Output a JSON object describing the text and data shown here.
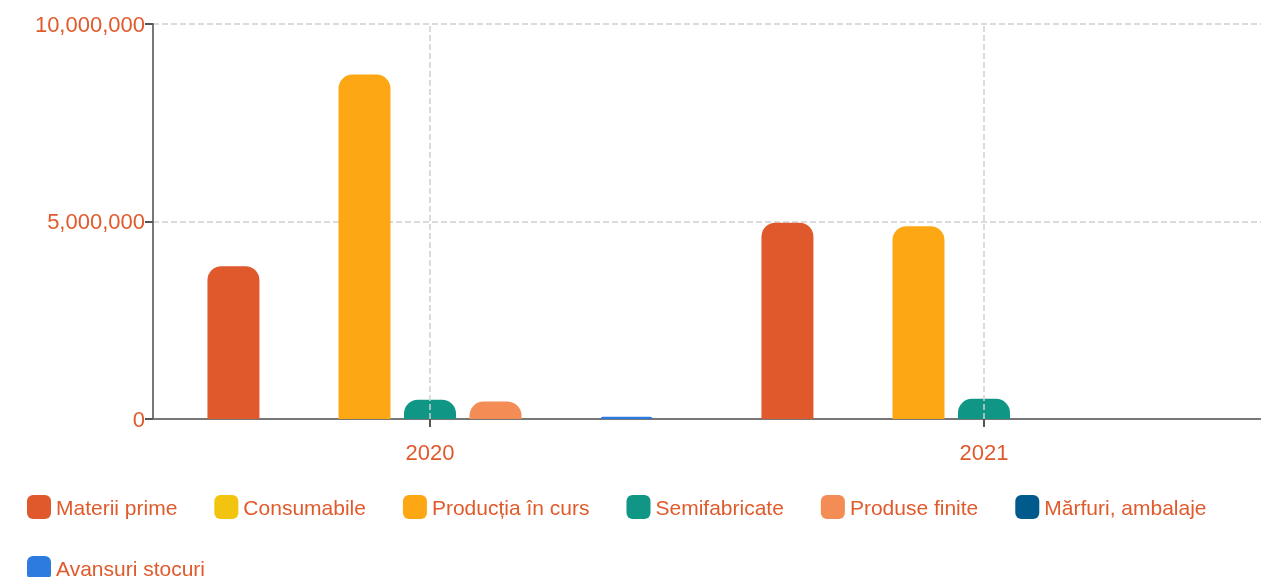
{
  "chart_data": {
    "type": "bar",
    "categories": [
      "2020",
      "2021"
    ],
    "series": [
      {
        "name": "Materii prime",
        "color": "#e0592c",
        "values": [
          3870000,
          4970000
        ]
      },
      {
        "name": "Consumabile",
        "color": "#f2c40f",
        "values": [
          0,
          0
        ]
      },
      {
        "name": "Producția în curs",
        "color": "#fda714",
        "values": [
          8720000,
          4880000
        ]
      },
      {
        "name": "Semifabricate",
        "color": "#109685",
        "values": [
          490000,
          510000
        ]
      },
      {
        "name": "Produse finite",
        "color": "#f48c56",
        "values": [
          440000,
          0
        ]
      },
      {
        "name": "Mărfuri, ambalaje",
        "color": "#005a8c",
        "values": [
          0,
          0
        ]
      },
      {
        "name": "Avansuri stocuri",
        "color": "#2e7be0",
        "values": [
          60000,
          null
        ]
      }
    ],
    "ylim": [
      0,
      10000000
    ],
    "yticks": [
      {
        "value": 0,
        "label": "0"
      },
      {
        "value": 5000000,
        "label": "5,000,000"
      },
      {
        "value": 10000000,
        "label": "10,000,000"
      }
    ],
    "grid": true,
    "legend": "bottom"
  }
}
